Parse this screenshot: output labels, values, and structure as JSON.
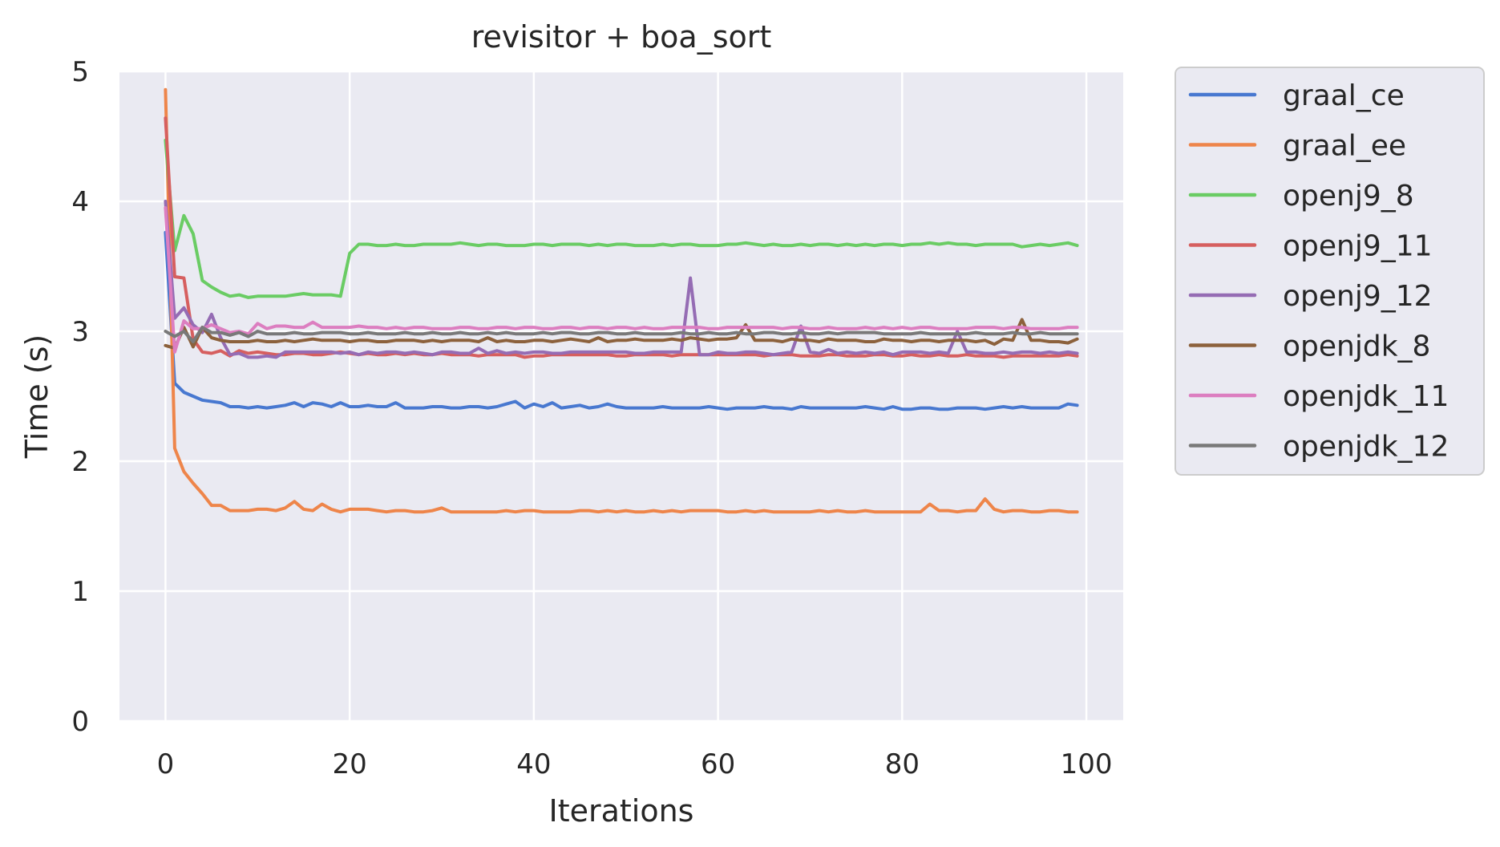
{
  "chart_data": {
    "type": "line",
    "title": "revisitor + boa_sort",
    "xlabel": "Iterations",
    "ylabel": "Time (s)",
    "xlim": [
      -5,
      104
    ],
    "ylim": [
      0,
      5
    ],
    "xticks": [
      0,
      20,
      40,
      60,
      80,
      100
    ],
    "yticks": [
      0,
      1,
      2,
      3,
      4,
      5
    ],
    "grid": true,
    "legend_position": "outside-right",
    "background": "#eaeaf2",
    "series": [
      {
        "name": "graal_ce",
        "color": "#4878d0",
        "values": [
          3.76,
          2.6,
          2.53,
          2.5,
          2.47,
          2.46,
          2.45,
          2.42,
          2.42,
          2.41,
          2.42,
          2.41,
          2.42,
          2.43,
          2.45,
          2.42,
          2.45,
          2.44,
          2.42,
          2.45,
          2.42,
          2.42,
          2.43,
          2.42,
          2.42,
          2.45,
          2.41,
          2.41,
          2.41,
          2.42,
          2.42,
          2.41,
          2.41,
          2.42,
          2.42,
          2.41,
          2.42,
          2.44,
          2.46,
          2.41,
          2.44,
          2.42,
          2.45,
          2.41,
          2.42,
          2.43,
          2.41,
          2.42,
          2.44,
          2.42,
          2.41,
          2.41,
          2.41,
          2.41,
          2.42,
          2.41,
          2.41,
          2.41,
          2.41,
          2.42,
          2.41,
          2.4,
          2.41,
          2.41,
          2.41,
          2.42,
          2.41,
          2.41,
          2.4,
          2.42,
          2.41,
          2.41,
          2.41,
          2.41,
          2.41,
          2.41,
          2.42,
          2.41,
          2.4,
          2.42,
          2.4,
          2.4,
          2.41,
          2.41,
          2.4,
          2.4,
          2.41,
          2.41,
          2.41,
          2.4,
          2.41,
          2.42,
          2.41,
          2.42,
          2.41,
          2.41,
          2.41,
          2.41,
          2.44,
          2.43
        ]
      },
      {
        "name": "graal_ee",
        "color": "#ee854a",
        "values": [
          4.86,
          2.1,
          1.92,
          1.83,
          1.75,
          1.66,
          1.66,
          1.62,
          1.62,
          1.62,
          1.63,
          1.63,
          1.62,
          1.64,
          1.69,
          1.63,
          1.62,
          1.67,
          1.63,
          1.61,
          1.63,
          1.63,
          1.63,
          1.62,
          1.61,
          1.62,
          1.62,
          1.61,
          1.61,
          1.62,
          1.64,
          1.61,
          1.61,
          1.61,
          1.61,
          1.61,
          1.61,
          1.62,
          1.61,
          1.62,
          1.62,
          1.61,
          1.61,
          1.61,
          1.61,
          1.62,
          1.62,
          1.61,
          1.62,
          1.61,
          1.62,
          1.61,
          1.61,
          1.62,
          1.61,
          1.62,
          1.61,
          1.62,
          1.62,
          1.62,
          1.62,
          1.61,
          1.61,
          1.62,
          1.61,
          1.62,
          1.61,
          1.61,
          1.61,
          1.61,
          1.61,
          1.62,
          1.61,
          1.62,
          1.61,
          1.61,
          1.62,
          1.61,
          1.61,
          1.61,
          1.61,
          1.61,
          1.61,
          1.67,
          1.62,
          1.62,
          1.61,
          1.62,
          1.62,
          1.71,
          1.63,
          1.61,
          1.62,
          1.62,
          1.61,
          1.61,
          1.62,
          1.62,
          1.61,
          1.61
        ]
      },
      {
        "name": "openj9_8",
        "color": "#6acc64",
        "values": [
          4.47,
          3.62,
          3.89,
          3.75,
          3.39,
          3.34,
          3.3,
          3.27,
          3.28,
          3.26,
          3.27,
          3.27,
          3.27,
          3.27,
          3.28,
          3.29,
          3.28,
          3.28,
          3.28,
          3.27,
          3.6,
          3.67,
          3.67,
          3.66,
          3.66,
          3.67,
          3.66,
          3.66,
          3.67,
          3.67,
          3.67,
          3.67,
          3.68,
          3.67,
          3.66,
          3.67,
          3.67,
          3.66,
          3.66,
          3.66,
          3.67,
          3.67,
          3.66,
          3.67,
          3.67,
          3.67,
          3.66,
          3.67,
          3.66,
          3.67,
          3.67,
          3.66,
          3.66,
          3.66,
          3.67,
          3.66,
          3.67,
          3.67,
          3.66,
          3.66,
          3.66,
          3.67,
          3.67,
          3.68,
          3.67,
          3.66,
          3.67,
          3.66,
          3.66,
          3.67,
          3.66,
          3.67,
          3.67,
          3.66,
          3.67,
          3.66,
          3.67,
          3.66,
          3.67,
          3.67,
          3.66,
          3.67,
          3.67,
          3.68,
          3.67,
          3.68,
          3.67,
          3.67,
          3.66,
          3.67,
          3.67,
          3.67,
          3.67,
          3.65,
          3.66,
          3.67,
          3.66,
          3.67,
          3.68,
          3.66
        ]
      },
      {
        "name": "openj9_11",
        "color": "#d65f5f",
        "values": [
          4.64,
          3.42,
          3.41,
          2.94,
          2.84,
          2.83,
          2.85,
          2.81,
          2.85,
          2.83,
          2.84,
          2.83,
          2.82,
          2.82,
          2.83,
          2.83,
          2.82,
          2.82,
          2.83,
          2.84,
          2.83,
          2.82,
          2.83,
          2.82,
          2.82,
          2.83,
          2.82,
          2.83,
          2.82,
          2.82,
          2.83,
          2.82,
          2.82,
          2.82,
          2.81,
          2.82,
          2.82,
          2.82,
          2.82,
          2.8,
          2.81,
          2.81,
          2.82,
          2.82,
          2.82,
          2.82,
          2.82,
          2.82,
          2.82,
          2.81,
          2.81,
          2.82,
          2.82,
          2.82,
          2.82,
          2.81,
          2.82,
          2.82,
          2.82,
          2.82,
          2.82,
          2.82,
          2.82,
          2.82,
          2.82,
          2.81,
          2.82,
          2.82,
          2.82,
          2.81,
          2.81,
          2.81,
          2.82,
          2.82,
          2.81,
          2.81,
          2.81,
          2.82,
          2.82,
          2.81,
          2.81,
          2.82,
          2.81,
          2.81,
          2.82,
          2.81,
          2.81,
          2.82,
          2.81,
          2.81,
          2.81,
          2.8,
          2.81,
          2.81,
          2.81,
          2.81,
          2.81,
          2.81,
          2.82,
          2.81
        ]
      },
      {
        "name": "openj9_12",
        "color": "#956cb4",
        "values": [
          4.0,
          3.1,
          3.18,
          3.05,
          2.99,
          3.13,
          2.95,
          2.82,
          2.83,
          2.8,
          2.8,
          2.81,
          2.8,
          2.84,
          2.84,
          2.84,
          2.84,
          2.84,
          2.84,
          2.83,
          2.84,
          2.82,
          2.84,
          2.83,
          2.84,
          2.84,
          2.83,
          2.84,
          2.83,
          2.82,
          2.84,
          2.84,
          2.83,
          2.83,
          2.87,
          2.83,
          2.85,
          2.83,
          2.84,
          2.83,
          2.84,
          2.84,
          2.83,
          2.83,
          2.84,
          2.84,
          2.84,
          2.84,
          2.84,
          2.84,
          2.84,
          2.83,
          2.83,
          2.84,
          2.84,
          2.84,
          2.84,
          3.41,
          2.82,
          2.82,
          2.84,
          2.83,
          2.83,
          2.84,
          2.84,
          2.83,
          2.82,
          2.83,
          2.84,
          3.04,
          2.84,
          2.83,
          2.86,
          2.83,
          2.84,
          2.83,
          2.84,
          2.83,
          2.84,
          2.82,
          2.84,
          2.84,
          2.84,
          2.83,
          2.84,
          2.83,
          3.0,
          2.84,
          2.84,
          2.83,
          2.83,
          2.84,
          2.83,
          2.84,
          2.84,
          2.83,
          2.84,
          2.83,
          2.84,
          2.83
        ]
      },
      {
        "name": "openjdk_8",
        "color": "#8c613c",
        "values": [
          2.89,
          2.87,
          3.03,
          2.88,
          3.03,
          2.95,
          2.93,
          2.92,
          2.92,
          2.92,
          2.93,
          2.92,
          2.92,
          2.93,
          2.92,
          2.93,
          2.94,
          2.93,
          2.93,
          2.93,
          2.92,
          2.93,
          2.93,
          2.92,
          2.92,
          2.93,
          2.93,
          2.93,
          2.92,
          2.93,
          2.92,
          2.93,
          2.93,
          2.93,
          2.92,
          2.95,
          2.92,
          2.93,
          2.92,
          2.92,
          2.93,
          2.93,
          2.92,
          2.93,
          2.94,
          2.93,
          2.92,
          2.95,
          2.92,
          2.93,
          2.93,
          2.94,
          2.93,
          2.93,
          2.93,
          2.94,
          2.93,
          2.95,
          2.94,
          2.93,
          2.94,
          2.94,
          2.95,
          3.05,
          2.93,
          2.93,
          2.93,
          2.92,
          2.94,
          2.93,
          2.93,
          2.92,
          2.94,
          2.93,
          2.93,
          2.93,
          2.92,
          2.92,
          2.94,
          2.93,
          2.93,
          2.92,
          2.93,
          2.93,
          2.92,
          2.93,
          2.93,
          2.93,
          2.92,
          2.93,
          2.9,
          2.94,
          2.93,
          3.09,
          2.93,
          2.93,
          2.92,
          2.92,
          2.91,
          2.94
        ]
      },
      {
        "name": "openjdk_11",
        "color": "#dc7ec0",
        "values": [
          3.95,
          2.84,
          3.08,
          3.02,
          3.02,
          3.05,
          3.02,
          2.99,
          3.0,
          2.98,
          3.06,
          3.02,
          3.04,
          3.04,
          3.03,
          3.03,
          3.07,
          3.03,
          3.03,
          3.03,
          3.03,
          3.04,
          3.03,
          3.03,
          3.02,
          3.03,
          3.02,
          3.03,
          3.03,
          3.02,
          3.02,
          3.02,
          3.03,
          3.03,
          3.02,
          3.02,
          3.03,
          3.03,
          3.02,
          3.03,
          3.03,
          3.02,
          3.02,
          3.03,
          3.03,
          3.02,
          3.03,
          3.03,
          3.02,
          3.03,
          3.03,
          3.02,
          3.03,
          3.02,
          3.02,
          3.03,
          3.03,
          3.03,
          3.03,
          3.02,
          3.02,
          3.03,
          3.03,
          3.03,
          3.03,
          3.03,
          3.03,
          3.02,
          3.03,
          3.03,
          3.02,
          3.02,
          3.03,
          3.02,
          3.02,
          3.02,
          3.03,
          3.02,
          3.03,
          3.02,
          3.03,
          3.02,
          3.03,
          3.03,
          3.02,
          3.02,
          3.02,
          3.02,
          3.03,
          3.03,
          3.03,
          3.02,
          3.03,
          3.03,
          3.02,
          3.02,
          3.02,
          3.02,
          3.03,
          3.03
        ]
      },
      {
        "name": "openjdk_12",
        "color": "#797979",
        "values": [
          3.0,
          2.96,
          3.0,
          2.92,
          3.03,
          2.99,
          2.99,
          2.97,
          2.99,
          2.96,
          3.0,
          2.98,
          2.98,
          2.98,
          2.99,
          2.98,
          2.98,
          2.99,
          2.99,
          2.99,
          2.98,
          2.98,
          2.99,
          2.98,
          2.98,
          2.98,
          2.99,
          2.98,
          2.98,
          2.99,
          2.98,
          2.98,
          2.99,
          2.98,
          2.98,
          2.99,
          2.98,
          2.99,
          2.98,
          2.98,
          2.98,
          2.99,
          2.98,
          2.99,
          2.99,
          2.98,
          2.98,
          2.99,
          2.99,
          2.98,
          2.98,
          2.99,
          2.98,
          2.98,
          2.98,
          2.98,
          2.99,
          2.98,
          2.98,
          2.99,
          2.98,
          2.98,
          2.99,
          2.98,
          2.98,
          2.99,
          2.99,
          2.98,
          2.98,
          2.99,
          2.98,
          2.98,
          2.99,
          2.98,
          2.99,
          2.99,
          2.99,
          2.99,
          2.98,
          2.98,
          2.98,
          2.98,
          2.99,
          2.98,
          2.98,
          2.98,
          2.98,
          2.98,
          2.99,
          2.98,
          2.98,
          2.98,
          2.99,
          2.98,
          2.98,
          2.99,
          2.98,
          2.98,
          2.98,
          2.98
        ]
      }
    ]
  }
}
